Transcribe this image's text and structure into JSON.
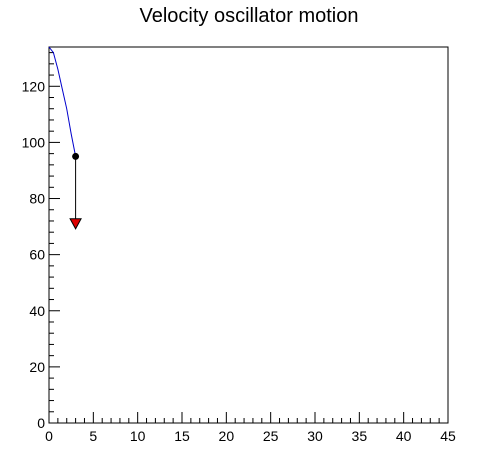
{
  "chart_data": {
    "type": "line",
    "title": "Velocity oscillator motion",
    "xlabel": "",
    "ylabel": "",
    "xlim": [
      0,
      45
    ],
    "ylim": [
      0,
      134
    ],
    "grid": false,
    "x_ticks": [
      0,
      5,
      10,
      15,
      20,
      25,
      30,
      35,
      40,
      45
    ],
    "y_ticks": [
      0,
      20,
      40,
      60,
      80,
      100,
      120
    ],
    "series": [
      {
        "color": "#0000cc",
        "x": [
          0,
          0.5,
          1,
          1.5,
          2,
          2.5,
          3
        ],
        "y": [
          134,
          132,
          126,
          119,
          112,
          103,
          95
        ]
      }
    ],
    "annotations": {
      "current_point": {
        "x": 3,
        "y": 95,
        "color": "#000000"
      },
      "arrow": {
        "x": 3,
        "y_start": 95,
        "y_end": 71,
        "color": "#000000",
        "head_color": "#dd0000"
      }
    }
  }
}
